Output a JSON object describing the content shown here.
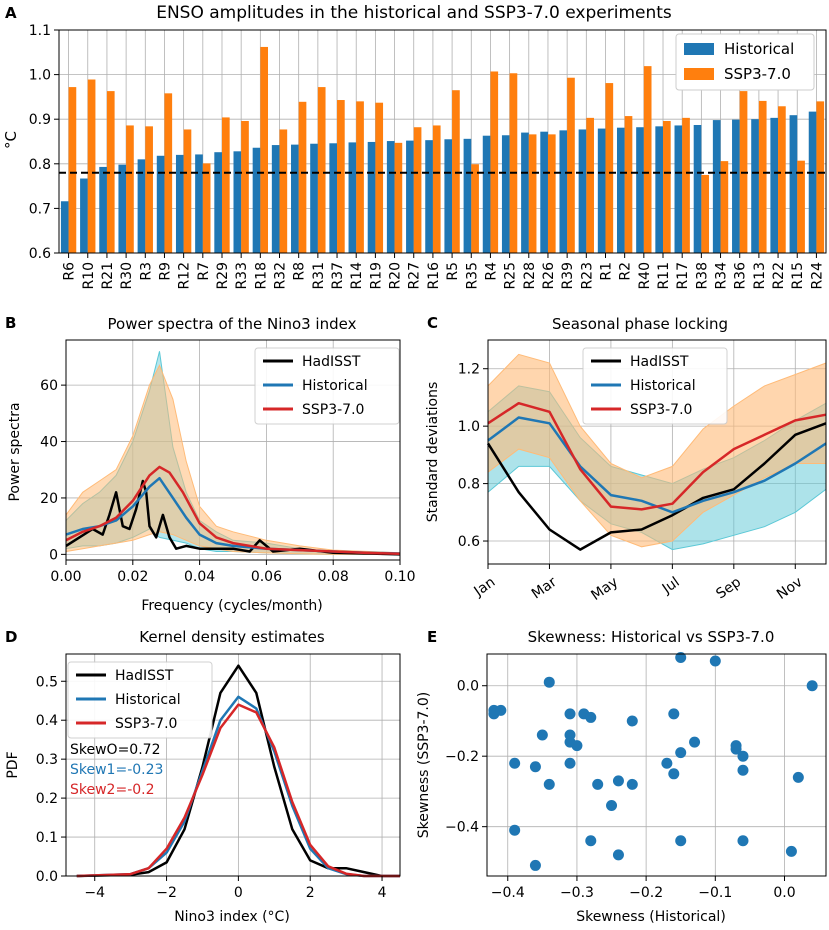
{
  "colors": {
    "historical": "#1f77b4",
    "ssp": "#ff7f0e",
    "hadisst": "#000000",
    "ssp_line": "#d62728",
    "hist_band": "#5bc8d6",
    "ssp_band": "#ffbb78",
    "grid": "#b0b0b0"
  },
  "chart_data": [
    {
      "panel": "A",
      "type": "bar",
      "title": "ENSO amplitudes in the historical and SSP3-7.0 experiments",
      "ylabel": "°C",
      "ylim": [
        0.6,
        1.1
      ],
      "yticks": [
        "0.6",
        "0.7",
        "0.8",
        "0.9",
        "1.0",
        "1.1"
      ],
      "reference_line": 0.78,
      "categories": [
        "R6",
        "R10",
        "R21",
        "R30",
        "R3",
        "R9",
        "R12",
        "R7",
        "R29",
        "R33",
        "R18",
        "R32",
        "R8",
        "R31",
        "R37",
        "R14",
        "R19",
        "R20",
        "R27",
        "R16",
        "R5",
        "R35",
        "R4",
        "R25",
        "R28",
        "R26",
        "R39",
        "R23",
        "R1",
        "R2",
        "R40",
        "R11",
        "R17",
        "R38",
        "R34",
        "R36",
        "R13",
        "R22",
        "R15",
        "R24"
      ],
      "series": [
        {
          "name": "Historical",
          "values": [
            0.716,
            0.767,
            0.793,
            0.798,
            0.81,
            0.818,
            0.82,
            0.821,
            0.826,
            0.828,
            0.836,
            0.842,
            0.843,
            0.845,
            0.846,
            0.848,
            0.849,
            0.851,
            0.852,
            0.853,
            0.855,
            0.856,
            0.863,
            0.864,
            0.87,
            0.872,
            0.875,
            0.877,
            0.879,
            0.881,
            0.882,
            0.884,
            0.886,
            0.887,
            0.898,
            0.899,
            0.9,
            0.903,
            0.909,
            0.917
          ]
        },
        {
          "name": "SSP3-7.0",
          "values": [
            0.972,
            0.989,
            0.963,
            0.886,
            0.884,
            0.958,
            0.877,
            0.801,
            0.904,
            0.896,
            1.062,
            0.877,
            0.939,
            0.972,
            0.943,
            0.94,
            0.937,
            0.847,
            0.882,
            0.886,
            0.965,
            0.799,
            1.007,
            1.003,
            0.866,
            0.866,
            0.993,
            0.903,
            0.981,
            0.907,
            1.019,
            0.896,
            0.903,
            0.775,
            0.806,
            0.963,
            0.941,
            0.929,
            0.807,
            0.94
          ]
        }
      ]
    },
    {
      "panel": "B",
      "type": "line",
      "title": "Power spectra of the Nino3 index",
      "xlabel": "Frequency (cycles/month)",
      "ylabel": "Power spectra",
      "xlim": [
        0,
        0.1
      ],
      "ylim": [
        -2,
        76
      ],
      "xticks": [
        "0.00",
        "0.02",
        "0.04",
        "0.06",
        "0.08",
        "0.10"
      ],
      "yticks": [
        "0",
        "20",
        "40",
        "60"
      ],
      "series": [
        {
          "name": "HadISST",
          "x": [
            0,
            0.004,
            0.008,
            0.011,
            0.013,
            0.015,
            0.017,
            0.019,
            0.021,
            0.023,
            0.024,
            0.025,
            0.027,
            0.029,
            0.031,
            0.033,
            0.036,
            0.04,
            0.045,
            0.05,
            0.055,
            0.058,
            0.062,
            0.07,
            0.08,
            0.09,
            0.1
          ],
          "y": [
            3,
            6,
            9,
            7,
            14,
            22,
            10,
            9,
            16,
            26,
            22,
            10,
            6,
            14,
            6,
            2,
            3,
            2,
            2,
            2,
            1,
            5,
            1,
            2,
            0.6,
            0.3,
            0
          ]
        },
        {
          "name": "Historical",
          "x": [
            0,
            0.005,
            0.01,
            0.015,
            0.02,
            0.025,
            0.028,
            0.032,
            0.036,
            0.04,
            0.045,
            0.05,
            0.06,
            0.07,
            0.08,
            0.09,
            0.1
          ],
          "y": [
            7,
            9,
            10,
            12,
            17,
            24,
            27,
            20,
            13,
            7,
            4,
            3,
            2,
            1.5,
            1,
            0.6,
            0.3
          ]
        },
        {
          "name": "SSP3-7.0",
          "x": [
            0,
            0.005,
            0.01,
            0.015,
            0.02,
            0.025,
            0.028,
            0.031,
            0.035,
            0.04,
            0.045,
            0.05,
            0.06,
            0.07,
            0.08,
            0.09,
            0.1
          ],
          "y": [
            5,
            8,
            10,
            13,
            19,
            28,
            31,
            29,
            22,
            11,
            6,
            4,
            2,
            1.5,
            1,
            0.5,
            0.2
          ]
        }
      ],
      "bands": [
        {
          "name": "Historical",
          "x": [
            0,
            0.005,
            0.01,
            0.015,
            0.02,
            0.025,
            0.028,
            0.032,
            0.036,
            0.04,
            0.045,
            0.05,
            0.06,
            0.07,
            0.08,
            0.1
          ],
          "upper": [
            12,
            18,
            22,
            28,
            40,
            58,
            72,
            38,
            22,
            12,
            8,
            5,
            4,
            2,
            1,
            0.5
          ],
          "lower": [
            2,
            3,
            3,
            4,
            6,
            9,
            6,
            5,
            4,
            2,
            1,
            1,
            0.5,
            0.2,
            0,
            0
          ]
        },
        {
          "name": "SSP3-7.0",
          "x": [
            0,
            0.005,
            0.01,
            0.015,
            0.02,
            0.025,
            0.028,
            0.032,
            0.036,
            0.04,
            0.045,
            0.05,
            0.06,
            0.07,
            0.08,
            0.1
          ],
          "upper": [
            14,
            22,
            26,
            30,
            42,
            60,
            67,
            55,
            33,
            17,
            10,
            8,
            5,
            3,
            1.5,
            0.6
          ],
          "lower": [
            1,
            2,
            3,
            4,
            5,
            7,
            8,
            7,
            5,
            3,
            2,
            1,
            0.5,
            0.2,
            0,
            0
          ]
        }
      ],
      "legend": [
        "HadISST",
        "Historical",
        "SSP3-7.0"
      ]
    },
    {
      "panel": "C",
      "type": "line",
      "title": "Seasonal phase locking",
      "ylabel": "Standard deviations",
      "ylim": [
        0.52,
        1.3
      ],
      "xticks": [
        "Jan",
        "Mar",
        "May",
        "Jul",
        "Sep",
        "Nov"
      ],
      "yticks": [
        "0.6",
        "0.8",
        "1.0",
        "1.2"
      ],
      "series": [
        {
          "name": "HadISST",
          "values": [
            0.94,
            0.77,
            0.64,
            0.57,
            0.63,
            0.64,
            0.69,
            0.75,
            0.78,
            0.87,
            0.97,
            1.01
          ]
        },
        {
          "name": "Historical",
          "values": [
            0.95,
            1.03,
            1.01,
            0.86,
            0.76,
            0.74,
            0.7,
            0.74,
            0.77,
            0.81,
            0.87,
            0.94
          ]
        },
        {
          "name": "SSP3-7.0",
          "values": [
            1.01,
            1.08,
            1.05,
            0.85,
            0.72,
            0.71,
            0.73,
            0.84,
            0.92,
            0.97,
            1.02,
            1.04
          ]
        }
      ],
      "bands": [
        {
          "name": "Historical",
          "upper": [
            1.05,
            1.14,
            1.12,
            0.96,
            0.86,
            0.83,
            0.8,
            0.85,
            0.89,
            0.95,
            1.02,
            1.08
          ],
          "lower": [
            0.77,
            0.86,
            0.86,
            0.74,
            0.66,
            0.63,
            0.57,
            0.59,
            0.62,
            0.65,
            0.7,
            0.78
          ]
        },
        {
          "name": "SSP3-7.0",
          "upper": [
            1.14,
            1.25,
            1.22,
            1.0,
            0.87,
            0.82,
            0.86,
            0.99,
            1.07,
            1.14,
            1.18,
            1.22
          ],
          "lower": [
            0.84,
            0.92,
            0.89,
            0.74,
            0.62,
            0.58,
            0.6,
            0.7,
            0.76,
            0.82,
            0.87,
            0.87
          ]
        }
      ],
      "legend": [
        "HadISST",
        "Historical",
        "SSP3-7.0"
      ]
    },
    {
      "panel": "D",
      "type": "line",
      "title": "Kernel density estimates",
      "xlabel": "Nino3 index (°C)",
      "ylabel": "PDF",
      "xlim": [
        -4.8,
        4.5
      ],
      "ylim": [
        0,
        0.57
      ],
      "xticks": [
        "−4",
        "−2",
        "0",
        "2",
        "4"
      ],
      "yticks": [
        "0.0",
        "0.1",
        "0.2",
        "0.3",
        "0.4",
        "0.5"
      ],
      "series": [
        {
          "name": "HadISST",
          "x": [
            -4.5,
            -3,
            -2.5,
            -2,
            -1.5,
            -1,
            -0.5,
            0,
            0.5,
            1,
            1.5,
            2,
            2.5,
            3,
            3.5,
            4,
            4.5
          ],
          "y": [
            0,
            0.003,
            0.01,
            0.035,
            0.12,
            0.28,
            0.47,
            0.54,
            0.47,
            0.28,
            0.12,
            0.04,
            0.02,
            0.02,
            0.01,
            0,
            0
          ]
        },
        {
          "name": "Historical",
          "x": [
            -4.5,
            -3,
            -2.5,
            -2,
            -1.5,
            -1,
            -0.5,
            0,
            0.5,
            1,
            1.5,
            2,
            2.5,
            3,
            3.5,
            4,
            4.5
          ],
          "y": [
            0,
            0.005,
            0.02,
            0.06,
            0.14,
            0.27,
            0.4,
            0.46,
            0.43,
            0.32,
            0.18,
            0.07,
            0.02,
            0.005,
            0,
            0,
            0
          ]
        },
        {
          "name": "SSP3-7.0",
          "x": [
            -4.5,
            -3,
            -2.5,
            -2,
            -1.5,
            -1,
            -0.5,
            0,
            0.5,
            1,
            1.5,
            2,
            2.5,
            3,
            3.5,
            4,
            4.5
          ],
          "y": [
            0,
            0.005,
            0.02,
            0.07,
            0.15,
            0.26,
            0.38,
            0.44,
            0.42,
            0.33,
            0.19,
            0.08,
            0.025,
            0.006,
            0,
            0,
            0
          ]
        }
      ],
      "legend": [
        "HadISST",
        "Historical",
        "SSP3-7.0"
      ],
      "annotations": [
        "SkewO=0.72",
        "Skew1=-0.23",
        "Skew2=-0.2"
      ]
    },
    {
      "panel": "E",
      "type": "scatter",
      "title": "Skewness: Historical vs SSP3-7.0",
      "xlabel": "Skewness (Historical)",
      "ylabel": "Skewness (SSP3-7.0)",
      "xlim": [
        -0.43,
        0.06
      ],
      "ylim": [
        -0.54,
        0.09
      ],
      "xticks": [
        "−0.4",
        "−0.3",
        "−0.2",
        "−0.1",
        "0.0"
      ],
      "yticks": [
        "−0.4",
        "−0.2",
        "0.0"
      ],
      "points": [
        [
          -0.42,
          -0.07
        ],
        [
          -0.42,
          -0.08
        ],
        [
          -0.41,
          -0.07
        ],
        [
          -0.39,
          -0.22
        ],
        [
          -0.39,
          -0.41
        ],
        [
          -0.36,
          -0.23
        ],
        [
          -0.36,
          -0.51
        ],
        [
          -0.35,
          -0.14
        ],
        [
          -0.34,
          0.01
        ],
        [
          -0.34,
          -0.28
        ],
        [
          -0.31,
          -0.08
        ],
        [
          -0.31,
          -0.14
        ],
        [
          -0.31,
          -0.16
        ],
        [
          -0.31,
          -0.22
        ],
        [
          -0.3,
          -0.17
        ],
        [
          -0.29,
          -0.08
        ],
        [
          -0.28,
          -0.09
        ],
        [
          -0.28,
          -0.44
        ],
        [
          -0.27,
          -0.28
        ],
        [
          -0.25,
          -0.34
        ],
        [
          -0.24,
          -0.27
        ],
        [
          -0.24,
          -0.48
        ],
        [
          -0.22,
          -0.1
        ],
        [
          -0.22,
          -0.28
        ],
        [
          -0.17,
          -0.22
        ],
        [
          -0.16,
          -0.08
        ],
        [
          -0.16,
          -0.25
        ],
        [
          -0.15,
          -0.19
        ],
        [
          -0.15,
          -0.44
        ],
        [
          -0.15,
          0.08
        ],
        [
          -0.13,
          -0.16
        ],
        [
          -0.1,
          0.07
        ],
        [
          -0.07,
          -0.17
        ],
        [
          -0.07,
          -0.18
        ],
        [
          -0.06,
          -0.2
        ],
        [
          -0.06,
          -0.24
        ],
        [
          -0.06,
          -0.44
        ],
        [
          0.01,
          -0.47
        ],
        [
          0.02,
          -0.26
        ],
        [
          0.04,
          0.0
        ]
      ]
    }
  ],
  "panel_labels": [
    "A",
    "B",
    "C",
    "D",
    "E"
  ]
}
